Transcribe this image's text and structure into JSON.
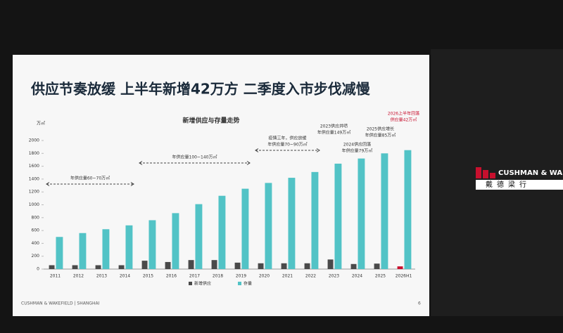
{
  "slide": {
    "title": "供应节奏放缓 上半年新增42万方 二季度入市步伐减慢",
    "footer": "CUSHMAN & WAKEFIELD | SHANGHAI",
    "page": "6"
  },
  "logo": {
    "name": "CUSHMAN & WAKEFIELD",
    "name_cn": "戴德梁行"
  },
  "chart_data": {
    "type": "bar",
    "title": "新增供应与存量走势",
    "y_unit": "万㎡",
    "categories": [
      "2011",
      "2012",
      "2013",
      "2014",
      "2015",
      "2016",
      "2017",
      "2018",
      "2019",
      "2020",
      "2021",
      "2022",
      "2023",
      "2024",
      "2025",
      "2026H1"
    ],
    "series": [
      {
        "name": "新增供应",
        "color": "#4a4a4a",
        "colors": [
          "#4a4a4a",
          "#4a4a4a",
          "#4a4a4a",
          "#4a4a4a",
          "#4a4a4a",
          "#4a4a4a",
          "#4a4a4a",
          "#4a4a4a",
          "#4a4a4a",
          "#4a4a4a",
          "#4a4a4a",
          "#4a4a4a",
          "#4a4a4a",
          "#4a4a4a",
          "#4a4a4a",
          "#c8102e"
        ],
        "values": [
          60,
          60,
          60,
          60,
          130,
          110,
          140,
          140,
          100,
          90,
          90,
          90,
          149,
          79,
          85,
          42
        ]
      },
      {
        "name": "存量",
        "color": "#52c3c6",
        "values": [
          500,
          560,
          620,
          680,
          760,
          870,
          1010,
          1140,
          1250,
          1340,
          1420,
          1510,
          1640,
          1720,
          1800,
          1850
        ]
      }
    ],
    "ylim": [
      0,
      2000
    ],
    "yticks": [
      0,
      200,
      400,
      600,
      800,
      1000,
      1200,
      1400,
      1600,
      1800,
      2000
    ],
    "annotations": [
      {
        "lines": [
          "年供应量60~70万㎡"
        ]
      },
      {
        "lines": [
          "年供应量100~140万㎡"
        ]
      },
      {
        "lines": [
          "疫情三年，供应放缓",
          "年供应量70~90万㎡"
        ]
      },
      {
        "lines": [
          "2023供应井喷",
          "年供应量149万㎡"
        ]
      },
      {
        "lines": [
          "2024供应回落",
          "年供应量79万㎡"
        ]
      },
      {
        "lines": [
          "2025供应增长",
          "年供应量85万㎡"
        ]
      },
      {
        "lines": [
          "2026上半年回落",
          "供应量42万㎡"
        ],
        "color": "#c8102e"
      }
    ]
  }
}
